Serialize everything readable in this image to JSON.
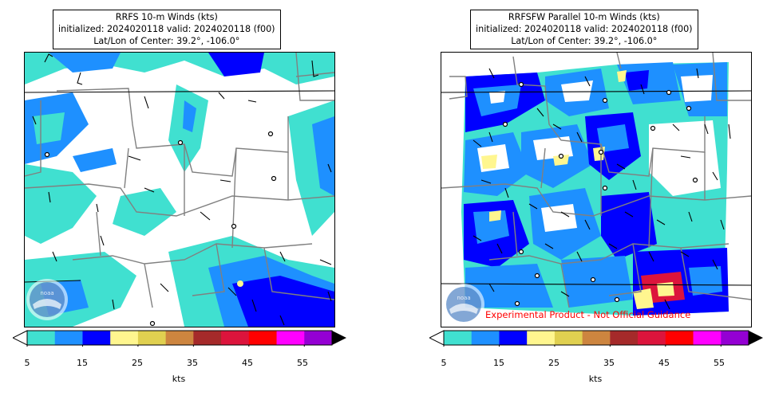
{
  "colors": {
    "bins": [
      "#40e0d0",
      "#1e90ff",
      "#0000ff",
      "#fff68f",
      "#e0d050",
      "#cd853f",
      "#a52a2a",
      "#dc143c",
      "#ff0000",
      "#ff00ff",
      "#9400d3"
    ],
    "over": "#000000",
    "under": "#ffffff",
    "state_border": "#808080",
    "country_border": "#000000",
    "disclaimer": "#ff0000"
  },
  "colorbar": {
    "ticks": [
      "5",
      "15",
      "25",
      "35",
      "45",
      "55"
    ],
    "unit": "kts"
  },
  "panels": [
    {
      "title_line1": "RRFS 10-m Winds (kts)",
      "title_line2": "initialized: 2024020118 valid: 2024020118 (f00)",
      "title_line3": "Lat/Lon of Center: 39.2°, -106.0°",
      "logo": "noaa-logo",
      "disclaimer": ""
    },
    {
      "title_line1": "RRFSFW Parallel 10-m Winds (kts)",
      "title_line2": "initialized: 2024020118 valid: 2024020118 (f00)",
      "title_line3": "Lat/Lon of Center: 39.2°, -106.0°",
      "logo": "noaa-logo",
      "disclaimer": "Experimental Product - Not Official Guidance"
    }
  ]
}
